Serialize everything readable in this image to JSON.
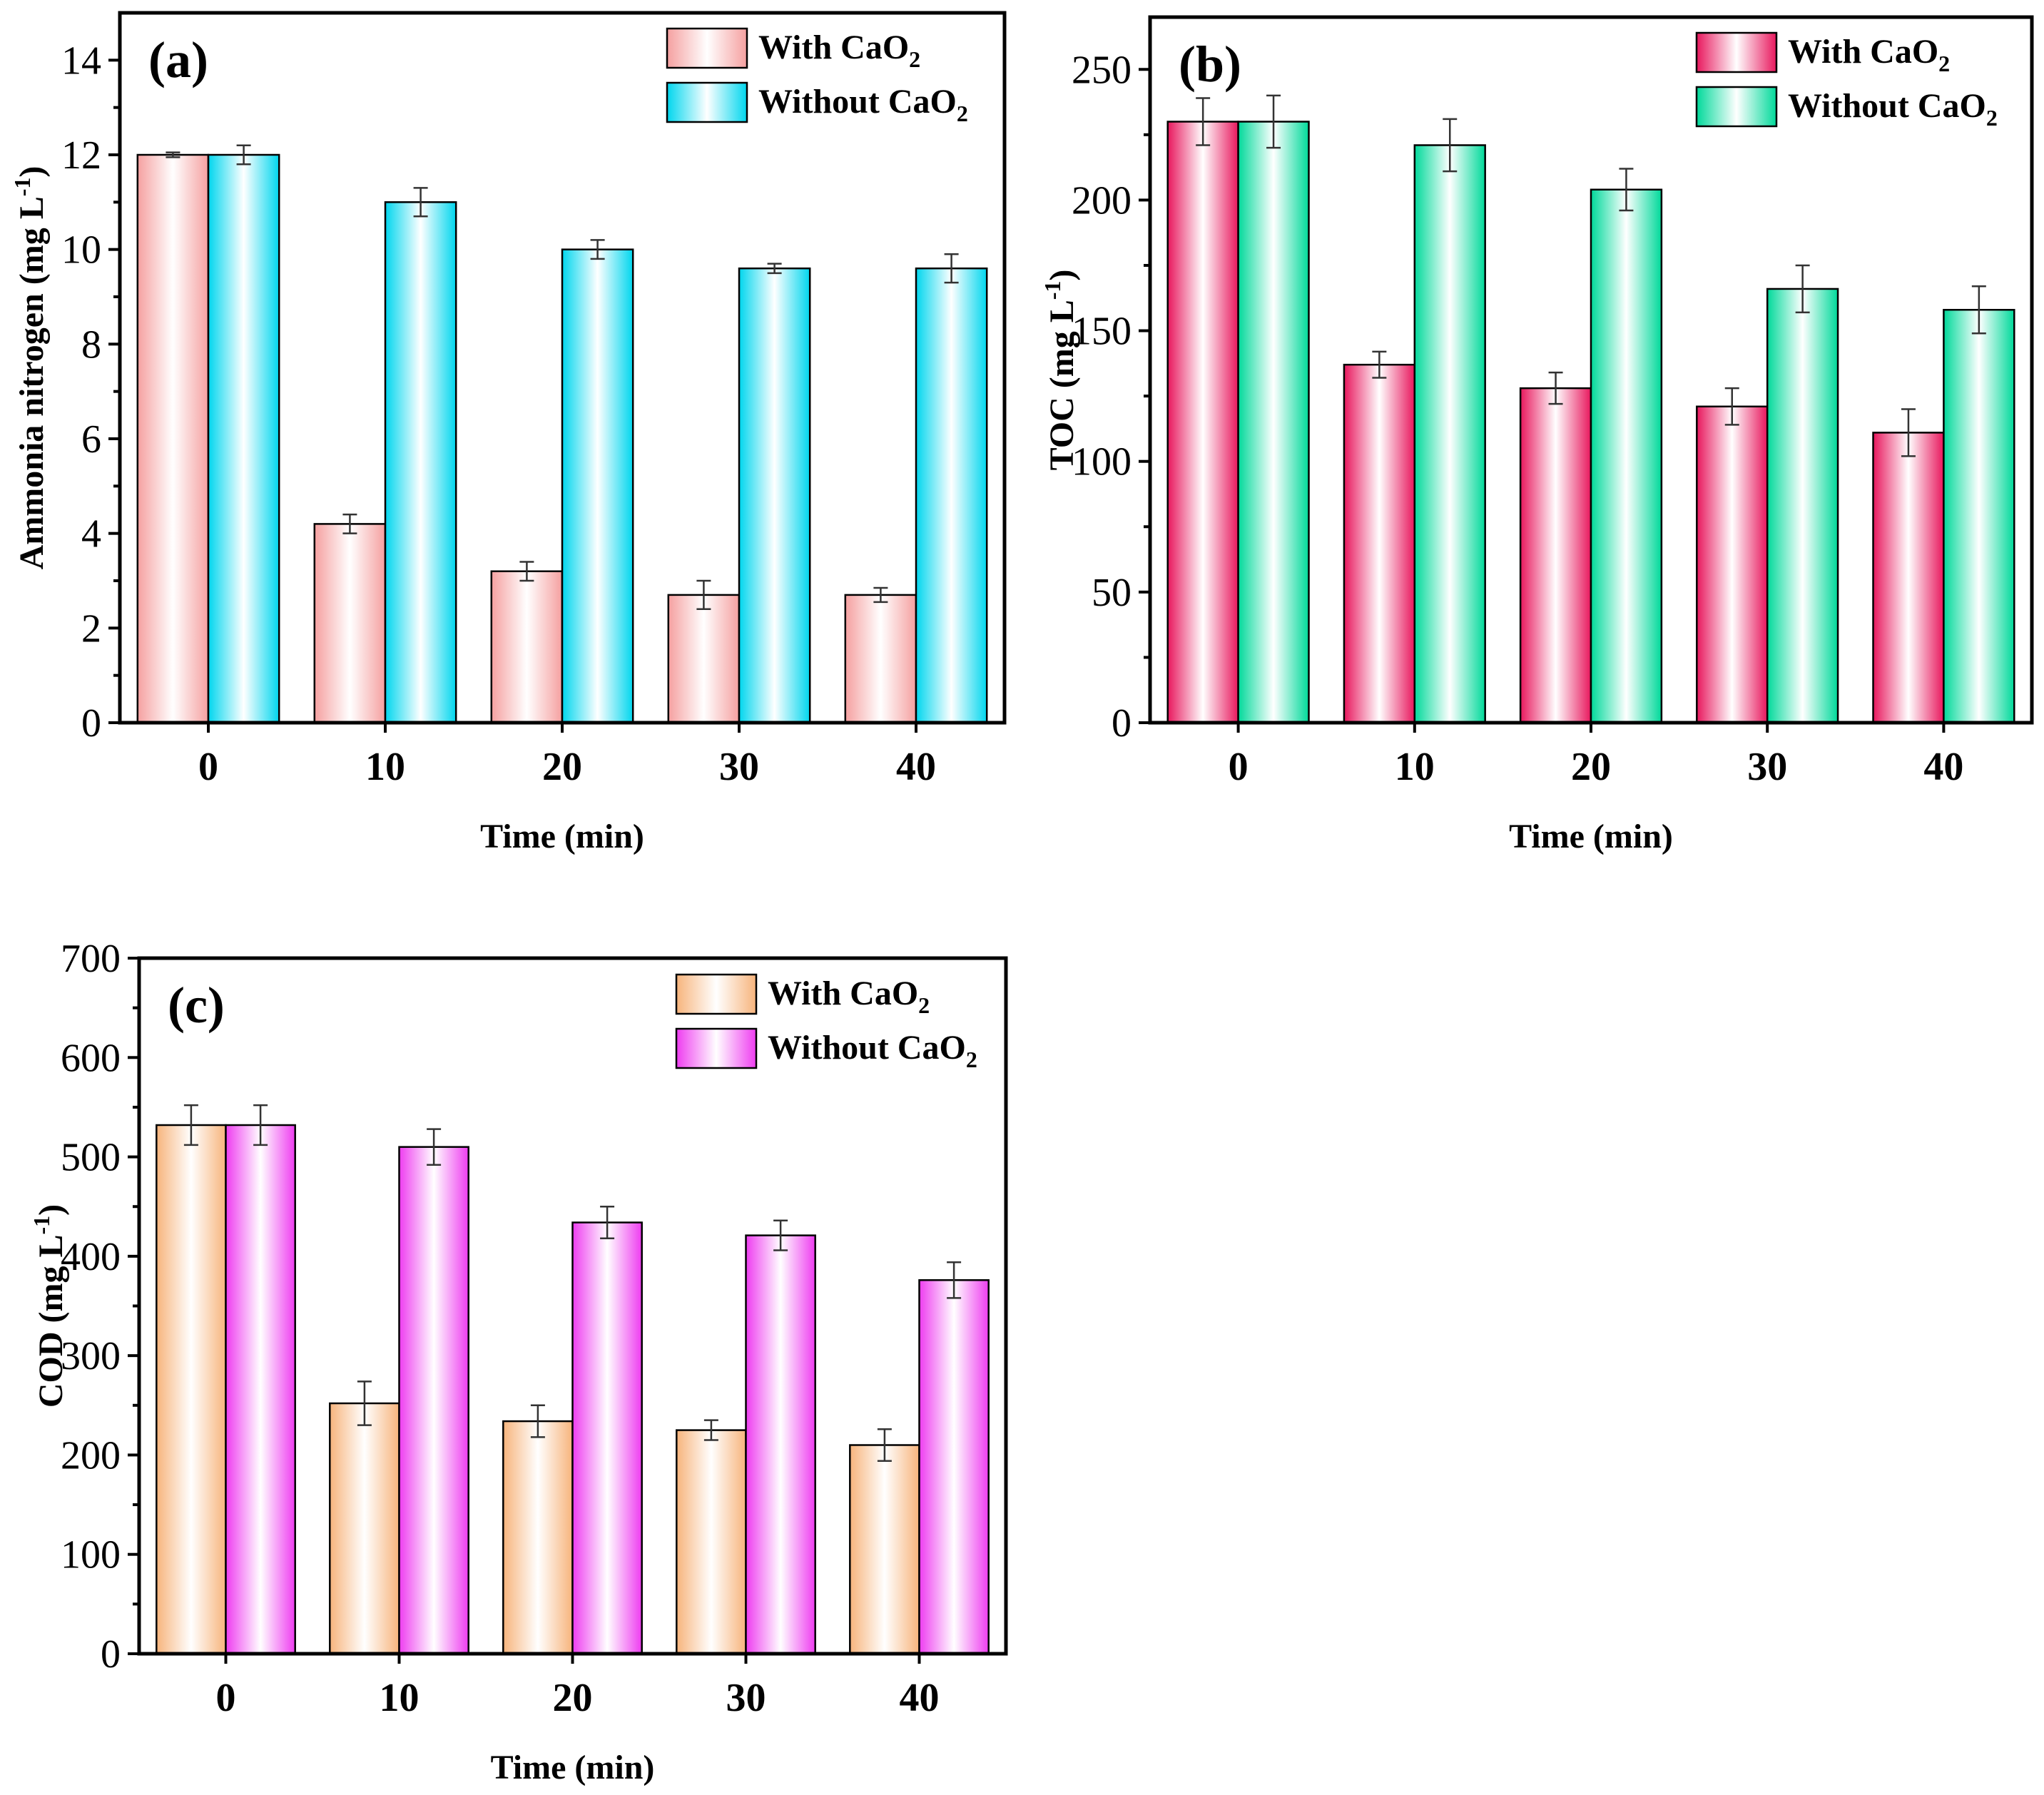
{
  "chart_data": [
    {
      "type": "bar",
      "panel_label": "(a)",
      "title": "",
      "xlabel": "Time (min)",
      "ylabel": "Ammonia nitrogen (mg L-1)",
      "ylabel_main": "Ammonia nitrogen (mg L",
      "ylabel_sup": "-1",
      "ylabel_end": ")",
      "categories": [
        "0",
        "10",
        "20",
        "30",
        "40"
      ],
      "ylim": [
        0,
        15
      ],
      "yticks": [
        0,
        2,
        4,
        6,
        8,
        10,
        12,
        14
      ],
      "legend_position": "top-right",
      "series": [
        {
          "name": "With CaO2",
          "label_main": "With CaO",
          "label_sub": "2",
          "values": [
            12.0,
            4.2,
            3.2,
            2.7,
            2.7
          ],
          "errors": [
            0.05,
            0.2,
            0.2,
            0.3,
            0.15
          ],
          "color_edge": "#f5a0a0",
          "color_center": "#ffffff"
        },
        {
          "name": "Without CaO2",
          "label_main": "Without CaO",
          "label_sub": "2",
          "values": [
            12.0,
            11.0,
            10.0,
            9.6,
            9.6
          ],
          "errors": [
            0.2,
            0.3,
            0.2,
            0.1,
            0.3
          ],
          "color_edge": "#00d6ee",
          "color_center": "#ffffff"
        }
      ]
    },
    {
      "type": "bar",
      "panel_label": "(b)",
      "title": "",
      "xlabel": "Time (min)",
      "ylabel": "TOC (mg L-1)",
      "ylabel_main": "TOC (mg L",
      "ylabel_sup": "-1",
      "ylabel_end": ")",
      "categories": [
        "0",
        "10",
        "20",
        "30",
        "40"
      ],
      "ylim": [
        0,
        270
      ],
      "yticks": [
        0,
        50,
        100,
        150,
        200,
        250
      ],
      "legend_position": "top-right",
      "series": [
        {
          "name": "With CaO2",
          "label_main": "With CaO",
          "label_sub": "2",
          "values": [
            230,
            137,
            128,
            121,
            111
          ],
          "errors": [
            9,
            5,
            6,
            7,
            9
          ],
          "color_edge": "#e8175d",
          "color_center": "#ffffff"
        },
        {
          "name": "Without CaO2",
          "label_main": "Without CaO",
          "label_sub": "2",
          "values": [
            230,
            221,
            204,
            166,
            158
          ],
          "errors": [
            10,
            10,
            8,
            9,
            9
          ],
          "color_edge": "#00d99a",
          "color_center": "#ffffff"
        }
      ]
    },
    {
      "type": "bar",
      "panel_label": "(c)",
      "title": "",
      "xlabel": "Time (min)",
      "ylabel": "COD (mg L-1)",
      "ylabel_main": "COD (mg L",
      "ylabel_sup": "-1",
      "ylabel_end": ")",
      "categories": [
        "0",
        "10",
        "20",
        "30",
        "40"
      ],
      "ylim": [
        0,
        700
      ],
      "yticks": [
        0,
        100,
        200,
        300,
        400,
        500,
        600,
        700
      ],
      "legend_position": "top-right",
      "series": [
        {
          "name": "With CaO2",
          "label_main": "With CaO",
          "label_sub": "2",
          "values": [
            532,
            252,
            234,
            225,
            210
          ],
          "errors": [
            20,
            22,
            16,
            10,
            16
          ],
          "color_edge": "#f7b47c",
          "color_center": "#ffffff"
        },
        {
          "name": "Without CaO2",
          "label_main": "Without CaO",
          "label_sub": "2",
          "values": [
            532,
            510,
            434,
            421,
            376
          ],
          "errors": [
            20,
            18,
            16,
            15,
            18
          ],
          "color_edge": "#ee3cf0",
          "color_center": "#ffffff"
        }
      ]
    }
  ]
}
